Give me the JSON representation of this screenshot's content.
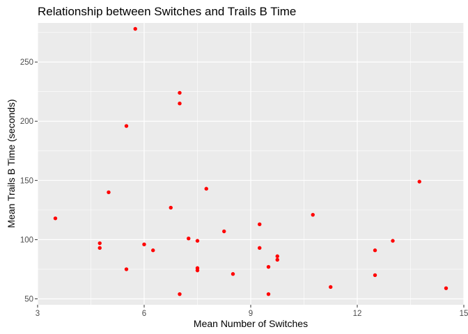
{
  "chart_data": {
    "type": "scatter",
    "title": "Relationship between Switches and Trails B Time",
    "xlabel": "Mean Number of Switches",
    "ylabel": "Mean Trails B Time (seconds)",
    "xlim": [
      3,
      15
    ],
    "ylim": [
      45,
      283
    ],
    "x_ticks": [
      3,
      6,
      9,
      12,
      15
    ],
    "y_ticks": [
      50,
      100,
      150,
      200,
      250
    ],
    "x_tick_labels": [
      "3",
      "6",
      "9",
      "12",
      "15"
    ],
    "y_tick_labels": [
      "50",
      "100",
      "150",
      "200",
      "250"
    ],
    "grid": true,
    "legend": "none",
    "point_color": "#ff0000",
    "panel_background": "#ebebeb",
    "grid_color": "#ffffff",
    "points": [
      {
        "x": 3.5,
        "y": 118
      },
      {
        "x": 4.75,
        "y": 97
      },
      {
        "x": 4.75,
        "y": 93
      },
      {
        "x": 5.0,
        "y": 140
      },
      {
        "x": 5.5,
        "y": 196
      },
      {
        "x": 5.5,
        "y": 75
      },
      {
        "x": 5.75,
        "y": 278
      },
      {
        "x": 6.0,
        "y": 96
      },
      {
        "x": 6.25,
        "y": 91
      },
      {
        "x": 6.75,
        "y": 127
      },
      {
        "x": 7.0,
        "y": 224
      },
      {
        "x": 7.0,
        "y": 215
      },
      {
        "x": 7.0,
        "y": 54
      },
      {
        "x": 7.25,
        "y": 101
      },
      {
        "x": 7.5,
        "y": 99
      },
      {
        "x": 7.5,
        "y": 76
      },
      {
        "x": 7.5,
        "y": 74
      },
      {
        "x": 7.75,
        "y": 143
      },
      {
        "x": 8.25,
        "y": 107
      },
      {
        "x": 8.5,
        "y": 71
      },
      {
        "x": 9.25,
        "y": 113
      },
      {
        "x": 9.25,
        "y": 93
      },
      {
        "x": 9.5,
        "y": 77
      },
      {
        "x": 9.5,
        "y": 54
      },
      {
        "x": 9.75,
        "y": 86
      },
      {
        "x": 9.75,
        "y": 83
      },
      {
        "x": 10.75,
        "y": 121
      },
      {
        "x": 11.25,
        "y": 60
      },
      {
        "x": 12.5,
        "y": 91
      },
      {
        "x": 12.5,
        "y": 70
      },
      {
        "x": 13.0,
        "y": 99
      },
      {
        "x": 13.75,
        "y": 149
      },
      {
        "x": 14.5,
        "y": 59
      }
    ]
  }
}
